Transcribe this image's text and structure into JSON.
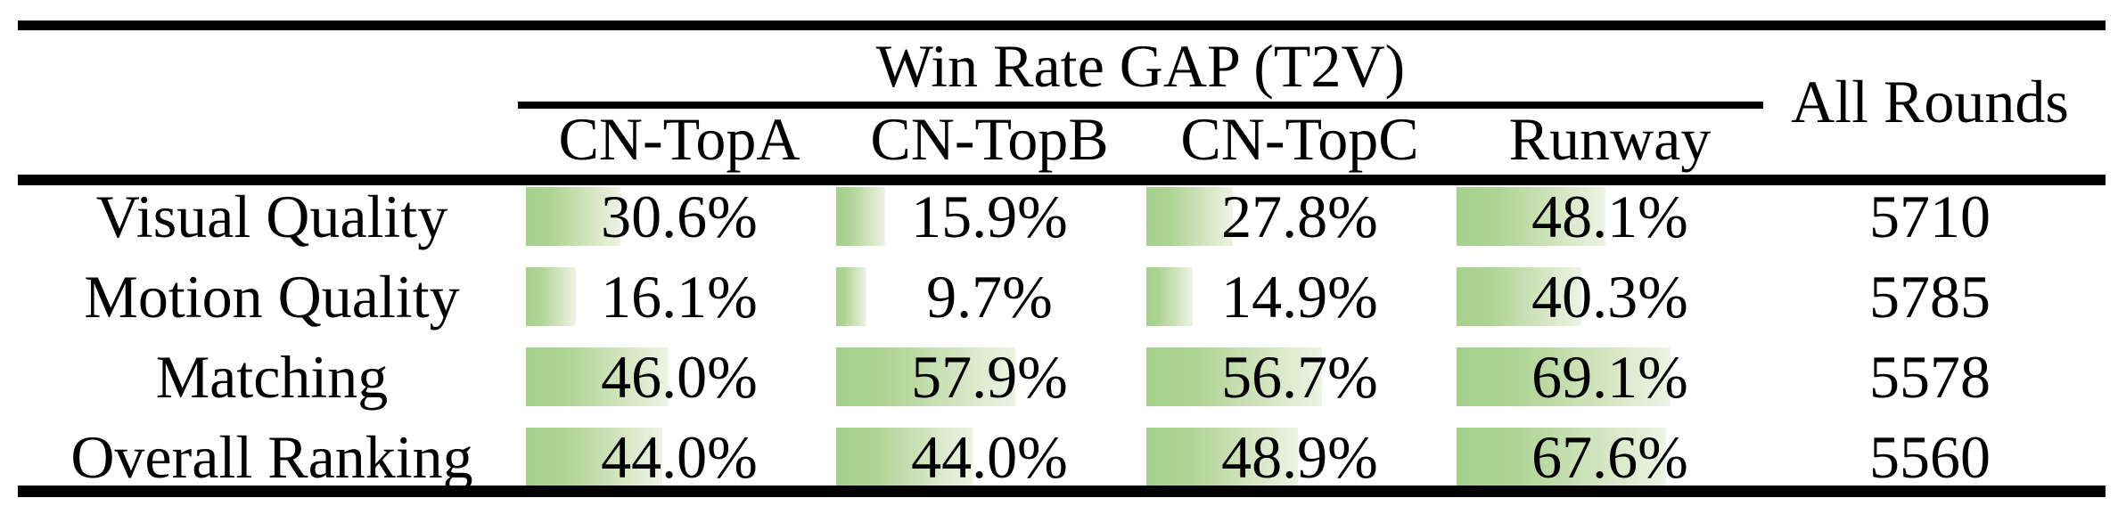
{
  "header": {
    "group_title": "Win Rate GAP (T2V)",
    "columns": [
      "CN-TopA",
      "CN-TopB",
      "CN-TopC",
      "Runway"
    ],
    "all_rounds_label": "All Rounds"
  },
  "rows": [
    {
      "label": "Visual Quality",
      "cells": [
        {
          "text": "30.6%",
          "pct": 30.6
        },
        {
          "text": "15.9%",
          "pct": 15.9
        },
        {
          "text": "27.8%",
          "pct": 27.8
        },
        {
          "text": "48.1%",
          "pct": 48.1
        }
      ],
      "all_rounds": "5710"
    },
    {
      "label": "Motion Quality",
      "cells": [
        {
          "text": "16.1%",
          "pct": 16.1
        },
        {
          "text": "9.7%",
          "pct": 9.7
        },
        {
          "text": "14.9%",
          "pct": 14.9
        },
        {
          "text": "40.3%",
          "pct": 40.3
        }
      ],
      "all_rounds": "5785"
    },
    {
      "label": "Matching",
      "cells": [
        {
          "text": "46.0%",
          "pct": 46.0
        },
        {
          "text": "57.9%",
          "pct": 57.9
        },
        {
          "text": "56.7%",
          "pct": 56.7
        },
        {
          "text": "69.1%",
          "pct": 69.1
        }
      ],
      "all_rounds": "5578"
    },
    {
      "label": "Overall Ranking",
      "cells": [
        {
          "text": "44.0%",
          "pct": 44.0
        },
        {
          "text": "44.0%",
          "pct": 44.0
        },
        {
          "text": "48.9%",
          "pct": 48.9
        },
        {
          "text": "67.6%",
          "pct": 67.6
        }
      ],
      "all_rounds": "5560"
    }
  ],
  "colors": {
    "bar_gradient_start": "#a5d08c",
    "bar_gradient_end": "#eef3e5",
    "rule": "#000000",
    "text": "#000000",
    "background": "#ffffff"
  },
  "chart_data": {
    "type": "table",
    "title": "Win Rate GAP (T2V)",
    "columns": [
      "",
      "CN-TopA",
      "CN-TopB",
      "CN-TopC",
      "Runway",
      "All Rounds"
    ],
    "rows": [
      [
        "Visual Quality",
        30.6,
        15.9,
        27.8,
        48.1,
        5710
      ],
      [
        "Motion Quality",
        16.1,
        9.7,
        14.9,
        40.3,
        5785
      ],
      [
        "Matching",
        46.0,
        57.9,
        56.7,
        69.1,
        5578
      ],
      [
        "Overall Ranking",
        44.0,
        44.0,
        48.9,
        67.6,
        5560
      ]
    ],
    "value_unit": "percent win-rate gap with green gradient data bars; All Rounds column is a raw count",
    "bar_range": [
      0,
      100
    ]
  }
}
